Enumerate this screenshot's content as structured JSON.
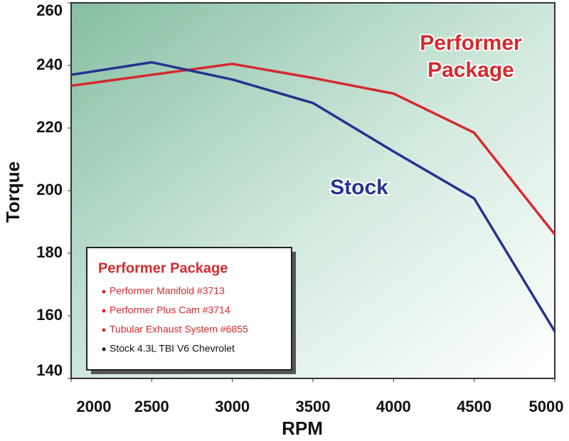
{
  "chart_data": {
    "type": "line",
    "x_label": "RPM",
    "y_label": "Torque",
    "x": [
      2000,
      2500,
      3000,
      3500,
      4000,
      4500,
      5000
    ],
    "xlim": [
      2000,
      5000
    ],
    "xticks": [
      2000,
      2500,
      3000,
      3500,
      4000,
      4500,
      5000
    ],
    "ylim": [
      140,
      260
    ],
    "yticks": [
      140,
      160,
      180,
      200,
      220,
      240,
      260
    ],
    "grid": false,
    "series": [
      {
        "name": "Performer Package",
        "color": "#d42a2e",
        "values": [
          233.5,
          237,
          240.5,
          236,
          231,
          218.5,
          186
        ]
      },
      {
        "name": "Stock",
        "color": "#27318f",
        "values": [
          237,
          241,
          235.5,
          228,
          212.5,
          197.5,
          155
        ]
      }
    ],
    "annotations": [
      {
        "lines": [
          "Performer",
          "Package"
        ],
        "color": "#d42a2e"
      }
    ],
    "inset": {
      "items": [
        {
          "text": "Performer Manifold #3713",
          "color": "#d42a2e"
        },
        {
          "text": "Performer Plus Cam #3714",
          "color": "#d42a2e"
        },
        {
          "text": "Tubular Exhaust System #6855",
          "color": "#d42a2e"
        },
        {
          "text": "Stock 4.3L TBI V6 Chevrolet",
          "color": "#111111"
        }
      ]
    }
  }
}
